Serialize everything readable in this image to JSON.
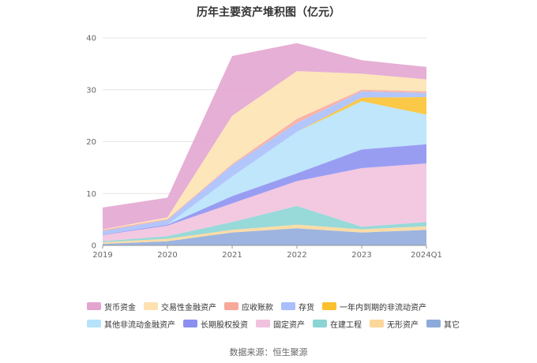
{
  "chart_data": {
    "type": "area",
    "stacked": true,
    "title": "历年主要资产堆积图（亿元）",
    "categories": [
      "2019",
      "2020",
      "2021",
      "2022",
      "2023",
      "2024Q1"
    ],
    "ylim": [
      0,
      40
    ],
    "yticks": [
      0,
      10,
      20,
      30,
      40
    ],
    "grid": true,
    "legend_position": "bottom",
    "series": [
      {
        "name": "其它",
        "color": "#8eaadb",
        "values": [
          0.3,
          0.8,
          2.5,
          3.3,
          2.5,
          3.0
        ]
      },
      {
        "name": "无形资产",
        "color": "#fcd79a",
        "values": [
          0.3,
          0.5,
          0.5,
          0.7,
          0.6,
          0.7
        ]
      },
      {
        "name": "在建工程",
        "color": "#8ad4d4",
        "values": [
          0.2,
          0.5,
          1.5,
          3.6,
          0.5,
          0.8
        ]
      },
      {
        "name": "固定资产",
        "color": "#f0c2dd",
        "values": [
          1.2,
          2.0,
          3.6,
          4.8,
          11.3,
          11.3
        ]
      },
      {
        "name": "长期股权投资",
        "color": "#8b8ff0",
        "values": [
          0.1,
          0.2,
          1.4,
          1.5,
          3.6,
          3.7
        ]
      },
      {
        "name": "其他非流动金融资产",
        "color": "#b6e3fb",
        "values": [
          0.0,
          0.0,
          3.8,
          8.0,
          9.3,
          5.7
        ]
      },
      {
        "name": "一年内到期的非流动资产",
        "color": "#fbc02d",
        "values": [
          0.0,
          0.0,
          0.0,
          0.0,
          0.7,
          3.4
        ]
      },
      {
        "name": "存货",
        "color": "#a9befb",
        "values": [
          0.7,
          0.9,
          2.2,
          1.7,
          1.2,
          0.8
        ]
      },
      {
        "name": "应收账款",
        "color": "#f8a89b",
        "values": [
          0.2,
          0.2,
          0.2,
          0.8,
          0.3,
          0.3
        ]
      },
      {
        "name": "交易性金融资产",
        "color": "#fde2b0",
        "values": [
          0.1,
          0.3,
          9.3,
          9.2,
          3.1,
          2.3
        ]
      },
      {
        "name": "货币资金",
        "color": "#e3a4cf",
        "values": [
          4.2,
          3.8,
          11.5,
          5.4,
          2.6,
          2.4
        ]
      }
    ],
    "legend_order": [
      "货币资金",
      "交易性金融资产",
      "应收账款",
      "存货",
      "一年内到期的非流动资产",
      "其他非流动金融资产",
      "长期股权投资",
      "固定资产",
      "在建工程",
      "无形资产",
      "其它"
    ]
  },
  "source_text": "数据来源：恒生聚源"
}
